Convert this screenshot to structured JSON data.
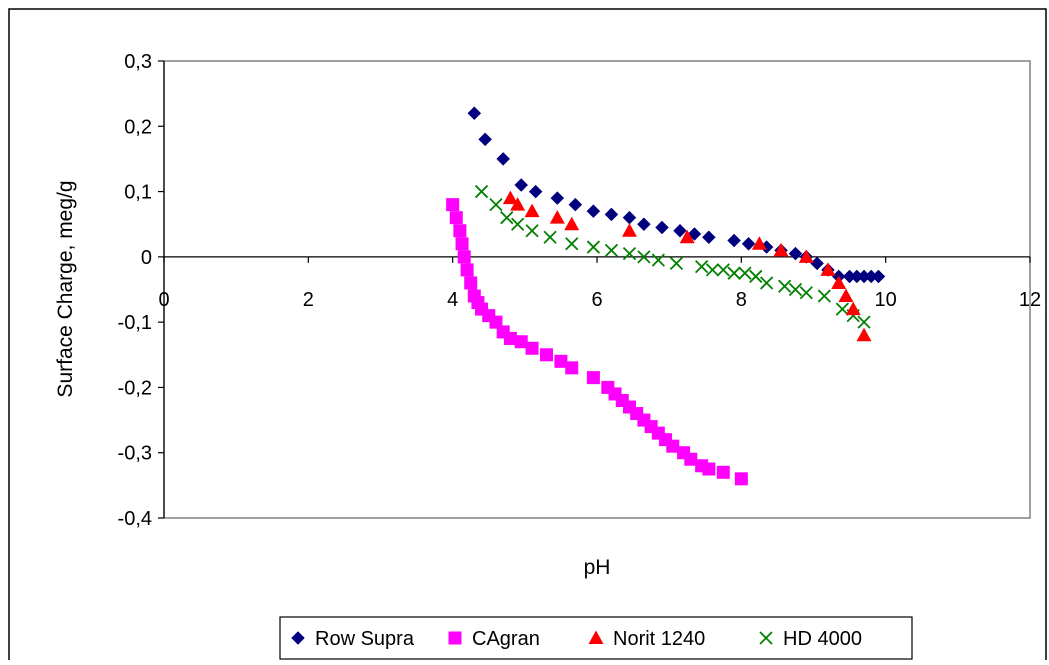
{
  "chart_data": {
    "type": "scatter",
    "title": "",
    "xlabel": "pH",
    "ylabel": "Surface Charge, meg/g",
    "xlim": [
      0,
      12
    ],
    "ylim": [
      -0.4,
      0.3
    ],
    "x_ticks": [
      "0",
      "2",
      "4",
      "6",
      "8",
      "10",
      "12"
    ],
    "y_ticks": [
      "0,3",
      "0,2",
      "0,1",
      "0",
      "-0,1",
      "-0,2",
      "-0,3",
      "-0,4"
    ],
    "grid": false,
    "legend_position": "bottom",
    "series": [
      {
        "name": "Row Supra",
        "marker": "diamond",
        "color": "#00007f",
        "x": [
          4.3,
          4.45,
          4.7,
          4.95,
          5.15,
          5.45,
          5.7,
          5.95,
          6.2,
          6.45,
          6.65,
          6.9,
          7.15,
          7.35,
          7.55,
          7.9,
          8.1,
          8.35,
          8.55,
          8.75,
          8.9,
          9.05,
          9.2,
          9.35,
          9.5,
          9.6,
          9.7,
          9.8,
          9.9
        ],
        "y": [
          0.22,
          0.18,
          0.15,
          0.11,
          0.1,
          0.09,
          0.08,
          0.07,
          0.065,
          0.06,
          0.05,
          0.045,
          0.04,
          0.035,
          0.03,
          0.025,
          0.02,
          0.015,
          0.01,
          0.005,
          0.0,
          -0.01,
          -0.02,
          -0.03,
          -0.03,
          -0.03,
          -0.03,
          -0.03,
          -0.03
        ]
      },
      {
        "name": "CAgran",
        "marker": "square",
        "color": "#ff00ff",
        "x": [
          4.0,
          4.05,
          4.1,
          4.13,
          4.16,
          4.2,
          4.25,
          4.3,
          4.35,
          4.4,
          4.5,
          4.6,
          4.7,
          4.8,
          4.95,
          5.1,
          5.3,
          5.5,
          5.65,
          5.95,
          6.15,
          6.25,
          6.35,
          6.45,
          6.55,
          6.65,
          6.75,
          6.85,
          6.95,
          7.05,
          7.2,
          7.3,
          7.45,
          7.55,
          7.75,
          8.0
        ],
        "y": [
          0.08,
          0.06,
          0.04,
          0.02,
          0.0,
          -0.02,
          -0.04,
          -0.06,
          -0.07,
          -0.08,
          -0.09,
          -0.1,
          -0.115,
          -0.125,
          -0.13,
          -0.14,
          -0.15,
          -0.16,
          -0.17,
          -0.185,
          -0.2,
          -0.21,
          -0.22,
          -0.23,
          -0.24,
          -0.25,
          -0.26,
          -0.27,
          -0.28,
          -0.29,
          -0.3,
          -0.31,
          -0.32,
          -0.325,
          -0.33,
          -0.34
        ]
      },
      {
        "name": "Norit 1240",
        "marker": "triangle",
        "color": "#ff0000",
        "x": [
          4.8,
          4.9,
          5.1,
          5.45,
          5.65,
          6.45,
          7.25,
          8.25,
          8.55,
          8.9,
          9.2,
          9.35,
          9.45,
          9.55,
          9.7
        ],
        "y": [
          0.09,
          0.08,
          0.07,
          0.06,
          0.05,
          0.04,
          0.03,
          0.02,
          0.01,
          0.0,
          -0.02,
          -0.04,
          -0.06,
          -0.08,
          -0.12
        ]
      },
      {
        "name": "HD 4000",
        "marker": "x",
        "color": "#008000",
        "x": [
          4.4,
          4.6,
          4.75,
          4.9,
          5.1,
          5.35,
          5.65,
          5.95,
          6.2,
          6.45,
          6.65,
          6.85,
          7.1,
          7.45,
          7.6,
          7.75,
          7.9,
          8.05,
          8.2,
          8.35,
          8.6,
          8.75,
          8.9,
          9.15,
          9.4,
          9.55,
          9.7
        ],
        "y": [
          0.1,
          0.08,
          0.06,
          0.05,
          0.04,
          0.03,
          0.02,
          0.015,
          0.01,
          0.005,
          0.0,
          -0.005,
          -0.01,
          -0.015,
          -0.02,
          -0.02,
          -0.025,
          -0.025,
          -0.03,
          -0.04,
          -0.045,
          -0.05,
          -0.055,
          -0.06,
          -0.08,
          -0.09,
          -0.1
        ]
      }
    ]
  }
}
